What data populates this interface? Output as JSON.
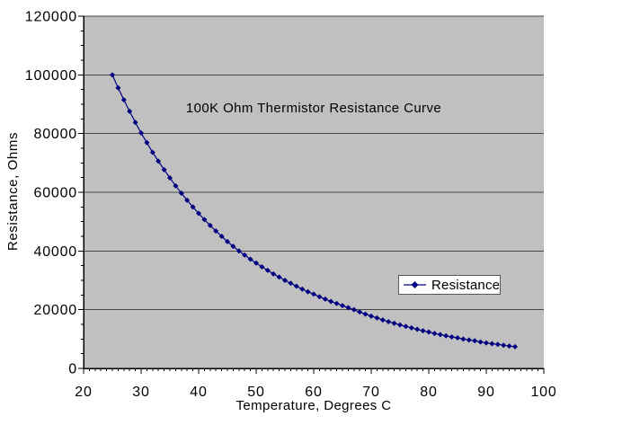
{
  "chart_data": {
    "type": "line",
    "title": "100K Ohm Thermistor Resistance Curve",
    "xlabel": "Temperature, Degrees C",
    "ylabel": "Resistance, Ohms",
    "xlim": [
      20,
      100
    ],
    "ylim": [
      0,
      120000
    ],
    "x_major_ticks": [
      20,
      30,
      40,
      50,
      60,
      70,
      80,
      90,
      100
    ],
    "x_minor_step": 1,
    "y_major_ticks": [
      0,
      20000,
      40000,
      60000,
      80000,
      100000,
      120000
    ],
    "y_minor_step": 5000,
    "grid": "horizontal major gridlines only, gray plot background, no vertical gridlines",
    "legend": {
      "position": "inside plot, middle-right",
      "entries": [
        {
          "label": "Resistance",
          "marker": "diamond",
          "color": "#000080"
        }
      ]
    },
    "series": [
      {
        "name": "Resistance",
        "marker": "diamond",
        "color": "#000080",
        "x": [
          25,
          26,
          27,
          28,
          29,
          30,
          31,
          32,
          33,
          34,
          35,
          36,
          37,
          38,
          39,
          40,
          41,
          42,
          43,
          44,
          45,
          46,
          47,
          48,
          49,
          50,
          51,
          52,
          53,
          54,
          55,
          56,
          57,
          58,
          59,
          60,
          61,
          62,
          63,
          64,
          65,
          66,
          67,
          68,
          69,
          70,
          71,
          72,
          73,
          74,
          75,
          76,
          77,
          78,
          79,
          80,
          81,
          82,
          83,
          84,
          85,
          86,
          87,
          88,
          89,
          90,
          91,
          92,
          93,
          94,
          95
        ],
        "y": [
          100000,
          95600,
          91500,
          87600,
          83800,
          80200,
          76900,
          73600,
          70600,
          67700,
          64900,
          62200,
          59700,
          57300,
          55000,
          52800,
          50700,
          48700,
          46800,
          45000,
          43200,
          41600,
          40000,
          38600,
          37200,
          35900,
          34600,
          33400,
          32200,
          31100,
          30000,
          29000,
          28000,
          27000,
          26100,
          25300,
          24400,
          23600,
          22800,
          22100,
          21400,
          20700,
          20000,
          19200,
          18500,
          17800,
          17200,
          16500,
          15900,
          15400,
          14800,
          14300,
          13800,
          13300,
          12800,
          12400,
          11900,
          11500,
          11100,
          10700,
          10400,
          10000,
          9700,
          9400,
          9000,
          8700,
          8400,
          8200,
          7900,
          7600,
          7400
        ]
      }
    ]
  },
  "colors": {
    "background": "#ffffff",
    "plot_background": "#c0c0c0",
    "gridline": "#474747",
    "axis_line": "#000000",
    "series_line": "#000080",
    "text": "#000000",
    "legend_background": "#ffffff",
    "legend_border": "#595959"
  }
}
